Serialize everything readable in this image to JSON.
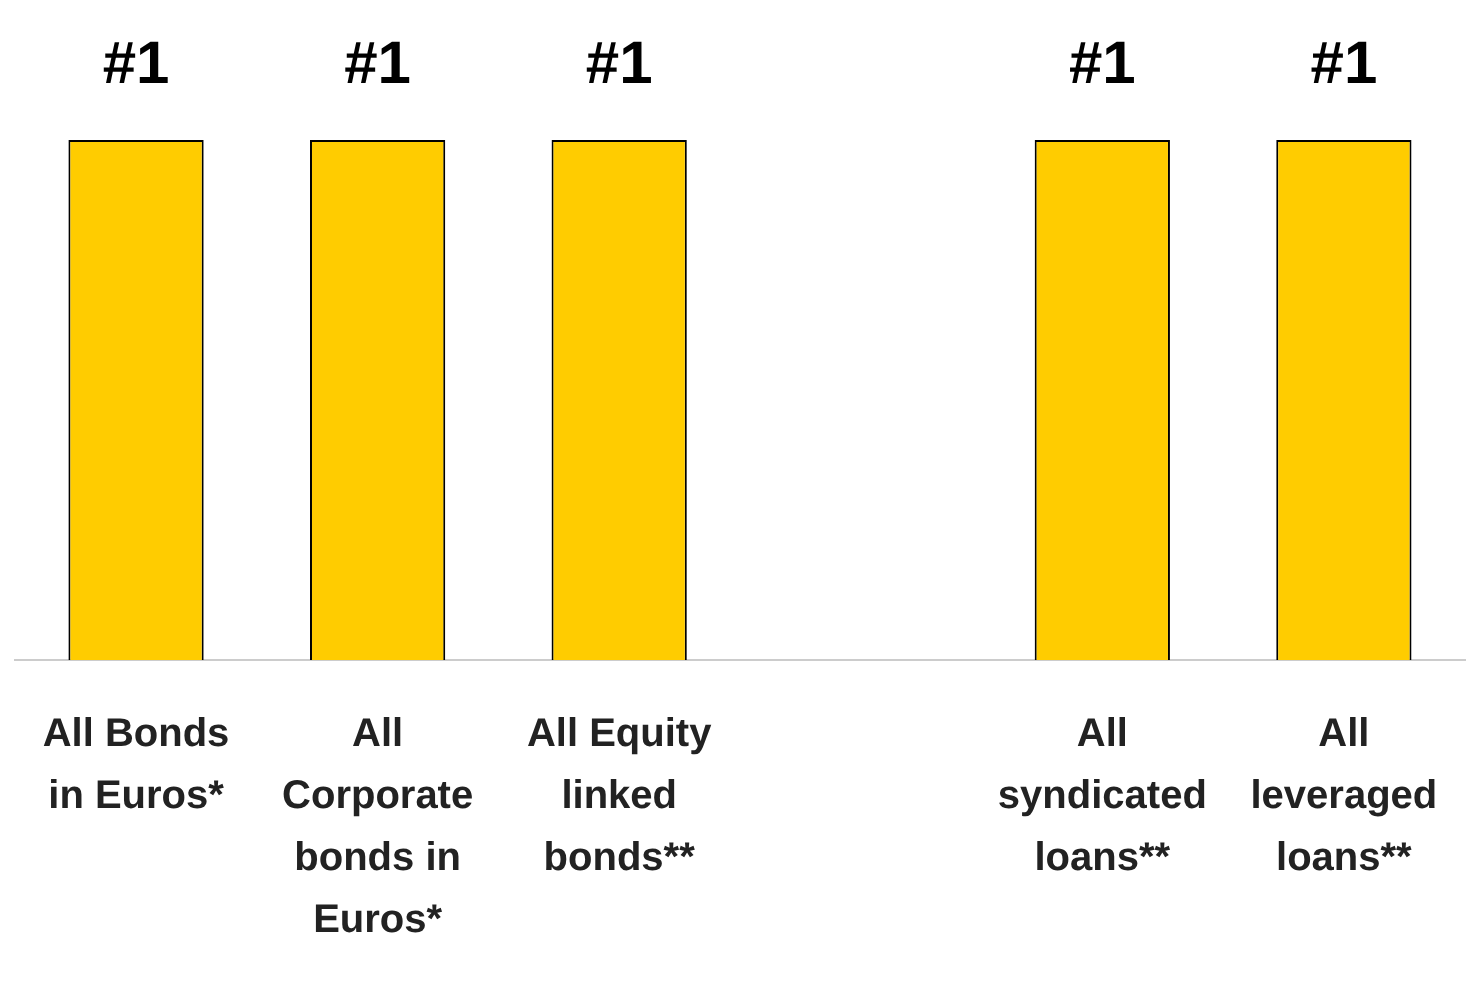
{
  "chart_data": {
    "type": "bar",
    "tick_labels": "x",
    "categories": [
      "All Bonds in Euros*",
      "All Corporate bonds in Euros*",
      "All Equity linked bonds**",
      null,
      "All syndicated loans**",
      "All leveraged loans**"
    ],
    "values": [
      1,
      1,
      1,
      null,
      1,
      1
    ],
    "value_labels": [
      "#1",
      "#1",
      "#1",
      null,
      "#1",
      "#1"
    ],
    "color": "#ffcc00",
    "grid": false,
    "legend": false
  }
}
